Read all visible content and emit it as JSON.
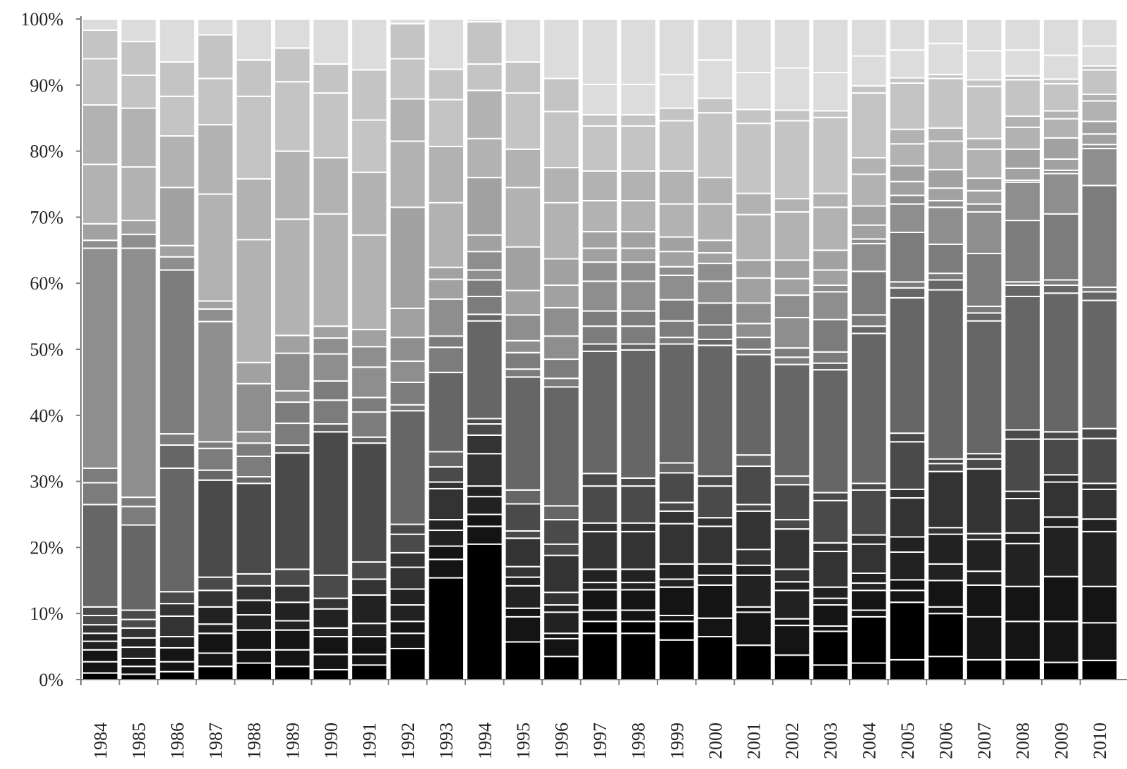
{
  "chart_data": {
    "type": "bar",
    "stacked": "percent",
    "title": "",
    "xlabel": "",
    "ylabel": "",
    "ylim": [
      0,
      100
    ],
    "y_ticks": [
      "0%",
      "10%",
      "20%",
      "30%",
      "40%",
      "50%",
      "60%",
      "70%",
      "80%",
      "90%",
      "100%"
    ],
    "grid": false,
    "legend": "none",
    "categories": [
      "1984",
      "1985",
      "1986",
      "1987",
      "1988",
      "1989",
      "1990",
      "1991",
      "1992",
      "1993",
      "1994",
      "1995",
      "1996",
      "1997",
      "1998",
      "1999",
      "2000",
      "2001",
      "2002",
      "2003",
      "2004",
      "2005",
      "2006",
      "2007",
      "2008",
      "2009",
      "2010"
    ],
    "segment_colors_bottom_to_top": [
      "#000000",
      "#141414",
      "#222222",
      "#333333",
      "#4a4a4a",
      "#666666",
      "#7c7c7c",
      "#8e8e8e",
      "#a1a1a1",
      "#b2b2b2",
      "#c4c4c4",
      "#dcdcdc"
    ],
    "stack_boundaries_percent": [
      [
        1,
        2.7,
        4.5,
        5.8,
        7,
        8.3,
        9.7,
        11,
        26.5,
        29.8,
        32,
        65.3,
        66.5,
        69,
        78,
        87,
        94,
        98.3,
        100
      ],
      [
        0.8,
        2,
        3.2,
        4.9,
        6.3,
        7.8,
        9.1,
        10.5,
        23.4,
        26.2,
        27.6,
        65.3,
        67.4,
        69.5,
        77.6,
        86.5,
        91.5,
        96.6,
        100
      ],
      [
        1.2,
        2.7,
        4.8,
        6.5,
        9.6,
        11.5,
        13.3,
        32,
        35.5,
        37.2,
        62,
        64,
        65.7,
        74.5,
        82.3,
        88.3,
        93.5,
        100
      ],
      [
        2,
        4,
        7,
        8.4,
        11,
        13.5,
        15.5,
        30.2,
        31.7,
        35,
        36,
        54.2,
        56.1,
        57.3,
        73.5,
        84,
        91,
        97.6,
        100
      ],
      [
        2.5,
        4.5,
        7.5,
        9.8,
        12,
        14.2,
        16,
        29.7,
        30.7,
        33.8,
        35.8,
        37.5,
        44.8,
        48,
        66.6,
        75.8,
        88.3,
        93.8,
        100
      ],
      [
        2,
        4.5,
        7.5,
        8.9,
        11.7,
        14.2,
        16.7,
        34.3,
        35.5,
        38.8,
        42,
        43.7,
        49.4,
        52.1,
        69.7,
        80,
        90.5,
        95.6,
        100
      ],
      [
        1.5,
        3.8,
        6.5,
        7.8,
        10.7,
        12.3,
        15.8,
        37.5,
        38.7,
        42.3,
        45.2,
        49.3,
        51.7,
        53.5,
        70.5,
        79,
        88.8,
        93.2,
        100
      ],
      [
        2.2,
        3.8,
        6.5,
        8.5,
        12.8,
        15.2,
        17.8,
        35.8,
        36.7,
        40.5,
        42.7,
        47.3,
        50.4,
        53,
        67.3,
        76.8,
        84.7,
        92.3,
        100
      ],
      [
        4.7,
        7,
        8.8,
        11.3,
        13.7,
        17,
        19.2,
        22,
        23.5,
        40.7,
        41.6,
        45,
        48.2,
        51.8,
        56.2,
        71.5,
        81.5,
        87.9,
        94,
        99.3,
        100
      ],
      [
        15.4,
        18.2,
        20.2,
        22.6,
        24.2,
        28.9,
        29.9,
        32.2,
        34.5,
        46.5,
        50.3,
        52,
        57.6,
        60.6,
        62.4,
        72.2,
        80.7,
        87.8,
        92.4,
        100
      ],
      [
        20.5,
        23.2,
        25,
        27.7,
        29.3,
        34.2,
        37,
        38.7,
        39.5,
        54.3,
        55.3,
        58,
        60.5,
        62,
        64.8,
        67.3,
        76,
        81.9,
        89.2,
        93.2,
        99.6,
        100
      ],
      [
        5.7,
        9.5,
        10.8,
        14.2,
        15.5,
        17.1,
        21.4,
        22.5,
        26.6,
        28.7,
        45.8,
        47,
        49.5,
        51.3,
        55.2,
        58.9,
        65.5,
        74.5,
        80.3,
        88.8,
        93.5,
        100
      ],
      [
        3.5,
        6.2,
        7,
        10.2,
        11.3,
        13.2,
        18.8,
        20.5,
        24.2,
        26.3,
        44.3,
        45.6,
        48.5,
        52,
        56.3,
        59.7,
        63.7,
        72.2,
        77.5,
        86,
        91,
        100
      ],
      [
        7,
        8.8,
        10.5,
        13.6,
        14.7,
        16.7,
        22.4,
        23.7,
        29.3,
        31.2,
        49.7,
        50.8,
        53.5,
        55.8,
        60.3,
        63.2,
        65.3,
        67.8,
        72.5,
        77,
        83.8,
        85.5,
        90.1,
        100
      ],
      [
        7,
        8.8,
        10.5,
        13.6,
        14.7,
        16.7,
        22.4,
        23.7,
        29.3,
        30.5,
        49.9,
        50.8,
        53.5,
        55.8,
        60.3,
        63.2,
        65.3,
        67.8,
        72.5,
        77,
        83.8,
        85.5,
        90.1,
        100
      ],
      [
        6,
        8.8,
        9.7,
        14,
        15.2,
        17.5,
        23.6,
        25.5,
        26.8,
        31.3,
        32.8,
        50.8,
        51.8,
        54.3,
        57.5,
        61.2,
        62.5,
        64.8,
        67,
        72,
        77,
        84.6,
        86.5,
        91.6,
        100
      ],
      [
        6.5,
        9.3,
        14.3,
        15.8,
        17.5,
        23.2,
        24.5,
        29.3,
        30.8,
        50.6,
        51.5,
        53.7,
        57,
        60.3,
        63,
        64.6,
        66.5,
        72,
        76,
        85.8,
        88,
        93.8,
        100
      ],
      [
        5.2,
        10.2,
        11,
        15.8,
        17.3,
        19.7,
        25.5,
        26.5,
        32.3,
        34,
        49.2,
        50,
        51.8,
        53.9,
        57,
        60.8,
        63.5,
        70.4,
        73.6,
        84.2,
        86.3,
        91.9,
        100
      ],
      [
        3.7,
        8.2,
        9.2,
        13.5,
        14.8,
        16.7,
        22.8,
        24.2,
        29.5,
        30.8,
        47.7,
        48.8,
        50.2,
        54.8,
        58.2,
        60.7,
        63.5,
        70.8,
        72.8,
        84.6,
        86.2,
        92.6,
        100
      ],
      [
        2.2,
        7.3,
        8.1,
        11.3,
        12.3,
        14,
        19.4,
        20.7,
        27.1,
        28.3,
        46.9,
        47.9,
        49.6,
        54.5,
        58.7,
        59.7,
        62,
        65,
        71.5,
        73.6,
        85.1,
        86.1,
        91.9,
        100
      ],
      [
        2.5,
        9.5,
        10.5,
        13.5,
        14.6,
        16.1,
        20.5,
        21.9,
        28.7,
        29.7,
        52.4,
        53.5,
        55.2,
        61.8,
        66,
        66.7,
        68.8,
        71.7,
        76.5,
        79,
        88.8,
        89.9,
        94.4,
        100
      ],
      [
        3,
        11.7,
        13.5,
        15.1,
        19.3,
        21.6,
        27.5,
        28.8,
        36,
        37.3,
        57.8,
        59.3,
        60.2,
        67.7,
        72,
        73.3,
        75.4,
        77.8,
        81.1,
        83.3,
        90.3,
        91.1,
        95.3,
        100
      ],
      [
        3.5,
        10,
        11,
        15,
        17.5,
        22,
        23,
        31.5,
        32.7,
        33.4,
        59,
        60.5,
        61.5,
        65.9,
        71.5,
        72.5,
        74.4,
        77.2,
        81.5,
        83.5,
        91,
        91.6,
        96.3,
        100
      ],
      [
        3,
        9.5,
        14.3,
        16.4,
        21.2,
        22.1,
        31.9,
        33.4,
        34.2,
        54.3,
        55.5,
        56.5,
        64.5,
        70.8,
        72,
        74,
        75.9,
        80.3,
        81.9,
        89.8,
        90.8,
        95.2,
        100
      ],
      [
        3,
        8.8,
        14.1,
        20.6,
        22.2,
        27.4,
        28.5,
        36.4,
        37.8,
        58,
        59.7,
        60.2,
        69.5,
        75.3,
        75.6,
        77.4,
        80.3,
        83.6,
        85.3,
        90.8,
        91.4,
        95.3,
        100
      ],
      [
        2.6,
        8.8,
        15.6,
        23.1,
        24.6,
        29.9,
        31,
        36.4,
        37.5,
        58.5,
        59.7,
        60.5,
        70.5,
        76.6,
        77.1,
        78.8,
        82,
        84.9,
        86.1,
        90.2,
        90.9,
        94.5,
        100
      ],
      [
        2.9,
        8.6,
        14.1,
        22.4,
        24.3,
        28.8,
        29.7,
        36.5,
        38,
        57.4,
        58.7,
        59.4,
        74.8,
        80.4,
        81,
        82.6,
        84.5,
        87.6,
        88.6,
        92.3,
        92.9,
        95.9,
        100
      ]
    ]
  }
}
